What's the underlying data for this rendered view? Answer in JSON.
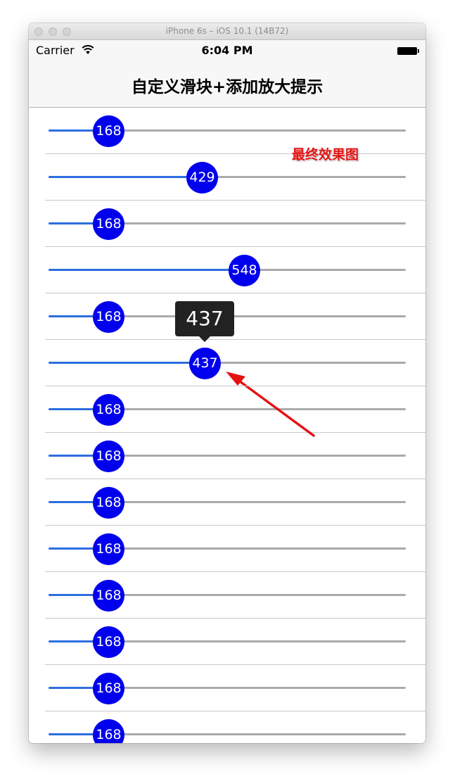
{
  "window": {
    "title": "iPhone 6s – iOS 10.1 (14B72)"
  },
  "statusbar": {
    "carrier": "Carrier",
    "time": "6:04 PM"
  },
  "navbar": {
    "title": "自定义滑块+添加放大提示"
  },
  "annotation": {
    "label": "最终效果图",
    "color": "#e51212"
  },
  "slider": {
    "min": 0,
    "max": 1000,
    "fill_color": "#2c6ee0",
    "track_color": "#aaaaaa",
    "thumb_color": "#0000ee"
  },
  "rows": [
    {
      "value": "168"
    },
    {
      "value": "429"
    },
    {
      "value": "168"
    },
    {
      "value": "548"
    },
    {
      "value": "168"
    },
    {
      "value": "437",
      "tooltip": "437"
    },
    {
      "value": "168"
    },
    {
      "value": "168"
    },
    {
      "value": "168"
    },
    {
      "value": "168"
    },
    {
      "value": "168"
    },
    {
      "value": "168"
    },
    {
      "value": "168"
    },
    {
      "value": "168"
    }
  ]
}
